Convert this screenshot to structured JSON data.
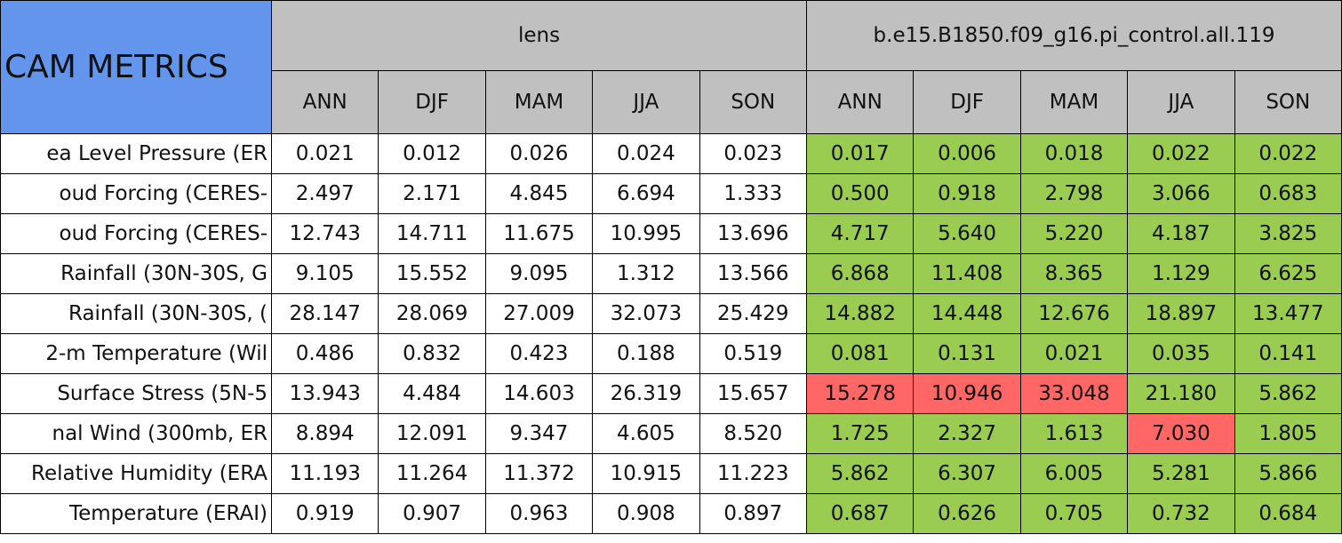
{
  "header": {
    "title": "CAM METRICS",
    "groups": [
      "lens",
      "b.e15.B1850.f09_g16.pi_control.all.119"
    ],
    "seasons": [
      "ANN",
      "DJF",
      "MAM",
      "JJA",
      "SON",
      "ANN",
      "DJF",
      "MAM",
      "JJA",
      "SON"
    ]
  },
  "colors": {
    "title": "#6495ed",
    "header": "#c0c0c0",
    "base": "#ffffff"
  },
  "table": {
    "rows": [
      {
        "label": "ea Level Pressure (ER",
        "values": [
          "0.021",
          "0.012",
          "0.026",
          "0.024",
          "0.023",
          "0.017",
          "0.006",
          "0.018",
          "0.022",
          "0.022"
        ],
        "colors": [
          "#99cc50",
          "#99cc50",
          "#99cc50",
          "#99cc50",
          "#99cc50"
        ]
      },
      {
        "label": "oud Forcing (CERES-",
        "values": [
          "2.497",
          "2.171",
          "4.845",
          "6.694",
          "1.333",
          "0.500",
          "0.918",
          "2.798",
          "3.066",
          "0.683"
        ],
        "colors": [
          "#99cc50",
          "#99cc50",
          "#99cc50",
          "#99cc50",
          "#99cc50"
        ]
      },
      {
        "label": "oud Forcing (CERES-",
        "values": [
          "12.743",
          "14.711",
          "11.675",
          "10.995",
          "13.696",
          "4.717",
          "5.640",
          "5.220",
          "4.187",
          "3.825"
        ],
        "colors": [
          "#99cc50",
          "#99cc50",
          "#99cc50",
          "#99cc50",
          "#99cc50"
        ]
      },
      {
        "label": "Rainfall (30N-30S, G",
        "values": [
          "9.105",
          "15.552",
          "9.095",
          "1.312",
          "13.566",
          "6.868",
          "11.408",
          "8.365",
          "1.129",
          "6.625"
        ],
        "colors": [
          "#99cc50",
          "#99cc50",
          "#99cc50",
          "#99cc50",
          "#99cc50"
        ]
      },
      {
        "label": "Rainfall (30N-30S, (",
        "values": [
          "28.147",
          "28.069",
          "27.009",
          "32.073",
          "25.429",
          "14.882",
          "14.448",
          "12.676",
          "18.897",
          "13.477"
        ],
        "colors": [
          "#99cc50",
          "#99cc50",
          "#99cc50",
          "#99cc50",
          "#99cc50"
        ]
      },
      {
        "label": "2-m Temperature (Wil",
        "values": [
          "0.486",
          "0.832",
          "0.423",
          "0.188",
          "0.519",
          "0.081",
          "0.131",
          "0.021",
          "0.035",
          "0.141"
        ],
        "colors": [
          "#99cc50",
          "#99cc50",
          "#99cc50",
          "#99cc50",
          "#99cc50"
        ]
      },
      {
        "label": "Surface Stress (5N-5",
        "values": [
          "13.943",
          "4.484",
          "14.603",
          "26.319",
          "15.657",
          "15.278",
          "10.946",
          "33.048",
          "21.180",
          "5.862"
        ],
        "colors": [
          "#ff6666",
          "#ff6666",
          "#ff6666",
          "#99cc50",
          "#99cc50"
        ]
      },
      {
        "label": "nal Wind (300mb, ER",
        "values": [
          "8.894",
          "12.091",
          "9.347",
          "4.605",
          "8.520",
          "1.725",
          "2.327",
          "1.613",
          "7.030",
          "1.805"
        ],
        "colors": [
          "#99cc50",
          "#99cc50",
          "#99cc50",
          "#ff6666",
          "#99cc50"
        ]
      },
      {
        "label": "Relative Humidity (ERA",
        "values": [
          "11.193",
          "11.264",
          "11.372",
          "10.915",
          "11.223",
          "5.862",
          "6.307",
          "6.005",
          "5.281",
          "5.866"
        ],
        "colors": [
          "#99cc50",
          "#99cc50",
          "#99cc50",
          "#99cc50",
          "#99cc50"
        ]
      },
      {
        "label": "Temperature (ERAI)",
        "values": [
          "0.919",
          "0.907",
          "0.963",
          "0.908",
          "0.897",
          "0.687",
          "0.626",
          "0.705",
          "0.732",
          "0.684"
        ],
        "colors": [
          "#99cc50",
          "#99cc50",
          "#99cc50",
          "#99cc50",
          "#99cc50"
        ]
      }
    ]
  }
}
